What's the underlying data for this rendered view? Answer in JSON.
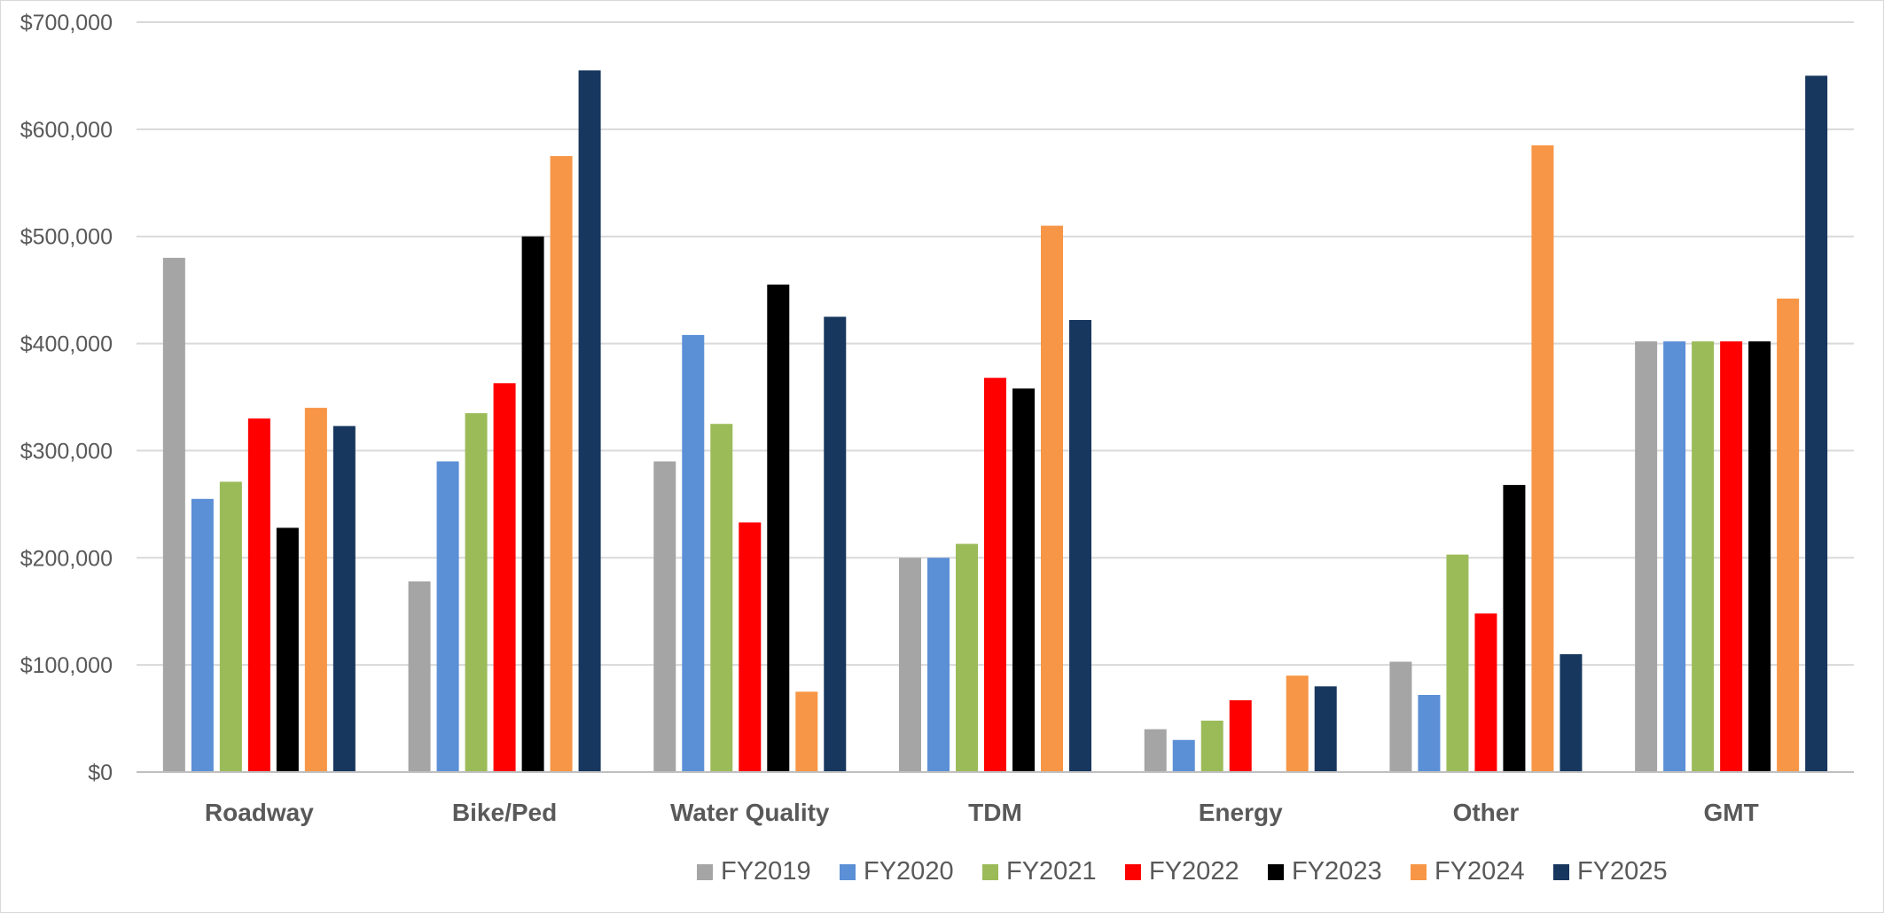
{
  "chart_data": {
    "type": "bar",
    "title": "",
    "xlabel": "",
    "ylabel": "",
    "ylim": [
      0,
      700000
    ],
    "y_ticks": [
      0,
      100000,
      200000,
      300000,
      400000,
      500000,
      600000,
      700000
    ],
    "y_tick_labels": [
      "$0",
      "$100,000",
      "$200,000",
      "$300,000",
      "$400,000",
      "$500,000",
      "$600,000",
      "$700,000"
    ],
    "grid": true,
    "legend_position": "bottom",
    "categories": [
      "Roadway",
      "Bike/Ped",
      "Water Quality",
      "TDM",
      "Energy",
      "Other",
      "GMT"
    ],
    "series": [
      {
        "name": "FY2019",
        "color": "#a5a5a5",
        "values": [
          480000,
          178000,
          290000,
          200000,
          40000,
          103000,
          402000
        ]
      },
      {
        "name": "FY2020",
        "color": "#5b8fd6",
        "values": [
          255000,
          290000,
          408000,
          200000,
          30000,
          72000,
          402000
        ]
      },
      {
        "name": "FY2021",
        "color": "#9bbb59",
        "values": [
          271000,
          335000,
          325000,
          213000,
          48000,
          203000,
          402000
        ]
      },
      {
        "name": "FY2022",
        "color": "#ff0000",
        "values": [
          330000,
          363000,
          233000,
          368000,
          67000,
          148000,
          402000
        ]
      },
      {
        "name": "FY2023",
        "color": "#000000",
        "values": [
          228000,
          500000,
          455000,
          358000,
          0,
          268000,
          402000
        ]
      },
      {
        "name": "FY2024",
        "color": "#f79646",
        "values": [
          340000,
          575000,
          75000,
          510000,
          90000,
          585000,
          442000
        ]
      },
      {
        "name": "FY2025",
        "color": "#17375e",
        "values": [
          323000,
          655000,
          425000,
          422000,
          80000,
          110000,
          650000
        ]
      }
    ]
  }
}
